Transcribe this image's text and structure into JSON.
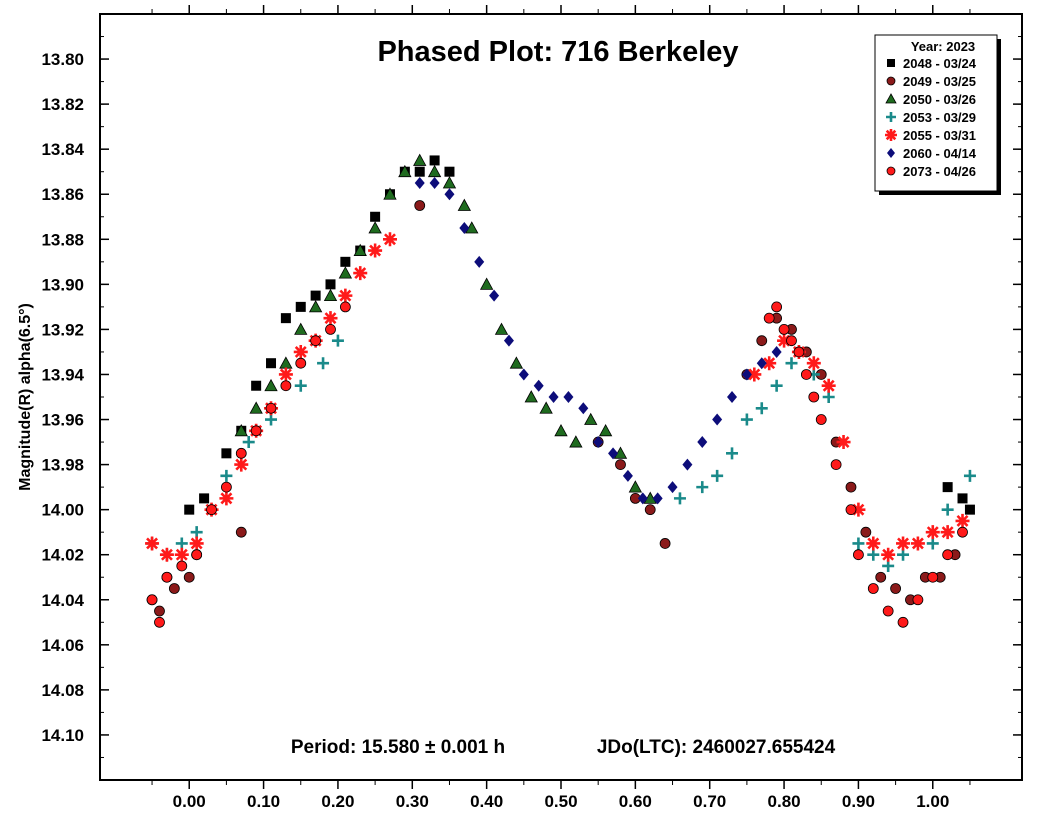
{
  "chart_data": {
    "type": "scatter",
    "title": "Phased Plot: 716 Berkeley",
    "xlabel": "",
    "ylabel": "Magnitude(R) alpha(6.5°)",
    "xlim": [
      -0.12,
      1.12
    ],
    "ylim": [
      13.78,
      14.12
    ],
    "y_inverted": true,
    "x_ticks": [
      "0.00",
      "0.10",
      "0.20",
      "0.30",
      "0.40",
      "0.50",
      "0.60",
      "0.70",
      "0.80",
      "0.90",
      "1.00"
    ],
    "y_ticks": [
      "13.80",
      "13.82",
      "13.84",
      "13.86",
      "13.88",
      "13.90",
      "13.92",
      "13.94",
      "13.96",
      "13.98",
      "14.00",
      "14.02",
      "14.04",
      "14.06",
      "14.08",
      "14.10"
    ],
    "grid": false,
    "legend": {
      "title": "Year: 2023",
      "position": "top-right",
      "entries": [
        "2048 - 03/24",
        "2049 - 03/25",
        "2050 - 03/26",
        "2053 - 03/29",
        "2055 - 03/31",
        "2060 - 04/14",
        "2073 - 04/26"
      ]
    },
    "annotations": {
      "period": "Period: 15.580 ± 0.001 h",
      "epoch": "JDo(LTC): 2460027.655424"
    },
    "series": [
      {
        "name": "2048 - 03/24",
        "marker": "square",
        "color": "#000000",
        "x": [
          0.0,
          0.02,
          0.05,
          0.07,
          0.09,
          0.11,
          0.13,
          0.15,
          0.17,
          0.19,
          0.21,
          0.23,
          0.25,
          0.27,
          0.29,
          0.31,
          0.33,
          0.35,
          1.02,
          1.04,
          1.05
        ],
        "y": [
          14.0,
          13.995,
          13.975,
          13.965,
          13.945,
          13.935,
          13.915,
          13.91,
          13.905,
          13.9,
          13.89,
          13.885,
          13.87,
          13.86,
          13.85,
          13.85,
          13.845,
          13.85,
          13.99,
          13.995,
          14.0
        ]
      },
      {
        "name": "2049 - 03/25",
        "marker": "circle",
        "color": "#8b1a1a",
        "x": [
          -0.05,
          -0.04,
          -0.03,
          -0.02,
          0.0,
          0.01,
          0.07,
          0.31,
          0.55,
          0.58,
          0.6,
          0.62,
          0.64,
          0.75,
          0.77,
          0.79,
          0.81,
          0.83,
          0.85,
          0.87,
          0.89,
          0.91,
          0.93,
          0.95,
          0.97,
          0.99,
          1.01,
          1.03
        ],
        "y": [
          14.04,
          14.045,
          14.03,
          14.035,
          14.03,
          14.02,
          14.01,
          13.865,
          13.97,
          13.98,
          13.995,
          14.0,
          14.015,
          13.94,
          13.925,
          13.915,
          13.92,
          13.93,
          13.94,
          13.97,
          13.99,
          14.01,
          14.03,
          14.035,
          14.04,
          14.03,
          14.03,
          14.02
        ]
      },
      {
        "name": "2050 - 03/26",
        "marker": "triangle",
        "color": "#1f6b1f",
        "x": [
          0.07,
          0.09,
          0.11,
          0.13,
          0.15,
          0.17,
          0.19,
          0.21,
          0.23,
          0.25,
          0.27,
          0.29,
          0.31,
          0.33,
          0.35,
          0.37,
          0.38,
          0.4,
          0.42,
          0.44,
          0.46,
          0.48,
          0.5,
          0.52,
          0.54,
          0.56,
          0.58,
          0.6,
          0.62
        ],
        "y": [
          13.965,
          13.955,
          13.945,
          13.935,
          13.92,
          13.91,
          13.905,
          13.895,
          13.885,
          13.875,
          13.86,
          13.85,
          13.845,
          13.85,
          13.855,
          13.865,
          13.875,
          13.9,
          13.92,
          13.935,
          13.95,
          13.955,
          13.965,
          13.97,
          13.96,
          13.965,
          13.975,
          13.99,
          13.995
        ]
      },
      {
        "name": "2053 - 03/29",
        "marker": "plus",
        "color": "#1a8a8a",
        "x": [
          -0.05,
          -0.03,
          -0.01,
          0.01,
          0.03,
          0.05,
          0.08,
          0.11,
          0.15,
          0.18,
          0.2,
          0.66,
          0.69,
          0.71,
          0.73,
          0.75,
          0.77,
          0.79,
          0.81,
          0.84,
          0.86,
          0.9,
          0.92,
          0.94,
          0.96,
          1.0,
          1.02,
          1.05
        ],
        "y": [
          14.015,
          14.02,
          14.015,
          14.01,
          14.0,
          13.985,
          13.97,
          13.96,
          13.945,
          13.935,
          13.925,
          13.995,
          13.99,
          13.985,
          13.975,
          13.96,
          13.955,
          13.945,
          13.935,
          13.94,
          13.95,
          14.015,
          14.02,
          14.025,
          14.02,
          14.015,
          14.0,
          13.985
        ]
      },
      {
        "name": "2055 - 03/31",
        "marker": "asterisk",
        "color": "#ff1a1a",
        "x": [
          -0.05,
          -0.03,
          -0.01,
          0.01,
          0.03,
          0.05,
          0.07,
          0.09,
          0.11,
          0.13,
          0.15,
          0.17,
          0.19,
          0.21,
          0.23,
          0.25,
          0.27,
          0.76,
          0.78,
          0.8,
          0.82,
          0.84,
          0.86,
          0.88,
          0.9,
          0.92,
          0.94,
          0.96,
          0.98,
          1.0,
          1.02,
          1.04
        ],
        "y": [
          14.015,
          14.02,
          14.02,
          14.015,
          14.0,
          13.995,
          13.98,
          13.965,
          13.955,
          13.94,
          13.93,
          13.925,
          13.915,
          13.905,
          13.895,
          13.885,
          13.88,
          13.94,
          13.935,
          13.925,
          13.93,
          13.935,
          13.945,
          13.97,
          14.0,
          14.015,
          14.02,
          14.015,
          14.015,
          14.01,
          14.01,
          14.005
        ]
      },
      {
        "name": "2060 - 04/14",
        "marker": "diamond",
        "color": "#0d0d7a",
        "x": [
          0.31,
          0.33,
          0.35,
          0.37,
          0.39,
          0.41,
          0.43,
          0.45,
          0.47,
          0.49,
          0.51,
          0.53,
          0.55,
          0.57,
          0.59,
          0.61,
          0.63,
          0.65,
          0.67,
          0.69,
          0.71,
          0.73,
          0.75,
          0.77,
          0.79
        ],
        "y": [
          13.855,
          13.855,
          13.86,
          13.875,
          13.89,
          13.905,
          13.925,
          13.94,
          13.945,
          13.95,
          13.95,
          13.955,
          13.97,
          13.975,
          13.985,
          13.995,
          13.995,
          13.99,
          13.98,
          13.97,
          13.96,
          13.95,
          13.94,
          13.935,
          13.93
        ]
      },
      {
        "name": "2073 - 04/26",
        "marker": "circle",
        "color": "#ff1a1a",
        "x": [
          -0.05,
          -0.04,
          -0.03,
          -0.01,
          0.01,
          0.03,
          0.05,
          0.07,
          0.09,
          0.11,
          0.13,
          0.15,
          0.17,
          0.19,
          0.21,
          0.78,
          0.79,
          0.8,
          0.81,
          0.82,
          0.83,
          0.84,
          0.85,
          0.87,
          0.89,
          0.9,
          0.92,
          0.94,
          0.96,
          0.98,
          1.0,
          1.02,
          1.04
        ],
        "y": [
          14.04,
          14.05,
          14.03,
          14.025,
          14.02,
          14.0,
          13.99,
          13.975,
          13.965,
          13.955,
          13.945,
          13.935,
          13.925,
          13.92,
          13.91,
          13.915,
          13.91,
          13.92,
          13.925,
          13.93,
          13.94,
          13.95,
          13.96,
          13.98,
          14.0,
          14.02,
          14.035,
          14.045,
          14.05,
          14.04,
          14.03,
          14.02,
          14.01
        ]
      }
    ]
  }
}
